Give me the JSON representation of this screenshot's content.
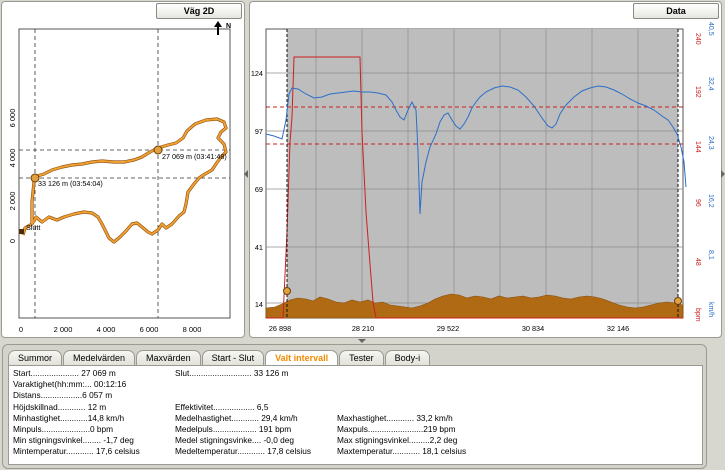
{
  "map_panel": {
    "title": "Väg 2D",
    "north_label": "N",
    "y_ticks": [
      "6 000",
      "4 000",
      "2 000",
      "0"
    ],
    "x_ticks": [
      "0",
      "2 000",
      "4 000",
      "6 000",
      "8 000"
    ],
    "marker_a_label": "33 126 m (03:54:04)",
    "marker_b_label": "27 069 m (03:41:48)",
    "end_label": "Slutt"
  },
  "data_panel": {
    "title": "Data",
    "left_axis_ticks": [
      "124",
      "97",
      "69",
      "41",
      "14"
    ],
    "bpm_axis_ticks": [
      "240",
      "192",
      "144",
      "96",
      "48"
    ],
    "bpm_unit": "bpm",
    "speed_axis_ticks": [
      "40,5",
      "32,4",
      "24,3",
      "16,2",
      "8,1"
    ],
    "speed_unit": "km/h",
    "x_ticks": [
      "26 898",
      "28 210",
      "29 522",
      "30 834",
      "32 146"
    ]
  },
  "colors": {
    "track": "#e8951e",
    "heart_rate": "#cc1f1f",
    "speed": "#2c6fc8",
    "elevation": "#b06a14",
    "selection": "#bdbdbd",
    "active_tab": "#f28a00"
  },
  "tabs": [
    {
      "label": "Summor"
    },
    {
      "label": "Medelvärden"
    },
    {
      "label": "Maxvärden"
    },
    {
      "label": "Start - Slut"
    },
    {
      "label": "Valt intervall"
    },
    {
      "label": "Tester"
    },
    {
      "label": "Body-i"
    }
  ],
  "interval": {
    "start": "Start..................... 27 069 m",
    "slut": "Slut........................... 33 126 m",
    "varaktighet": "Varaktighet(hh:mm:... 00:12:16",
    "distans": "Distans..................6 057 m",
    "hojdskillnad": "Höjdskillnad............ 12 m",
    "effektivitet": "Effektivitet.................. 6,5",
    "minhastighet": "Minhastighet............14,8 km/h",
    "medelhastighet": "Medelhastighet............ 29,4 km/h",
    "maxhastighet": "Maxhastighet............ 33,2 km/h",
    "minpuls": "Minpuls.....................0 bpm",
    "medelpuls": "Medelpuls................... 191 bpm",
    "maxpuls": "Maxpuls........................219 bpm",
    "min_stigning": "Min stigningsvinkel........ -1,7 deg",
    "medel_stigning": "Medel stigningsvinke.... -0,0 deg",
    "max_stigning": "Max stigningsvinkel.........2,2 deg",
    "mintemp": "Mintemperatur............ 17,6 celsius",
    "medeltemp": "Medeltemperatur............ 17,8 celsius",
    "maxtemp": "Maxtemperatur............ 18,1 celsius"
  }
}
